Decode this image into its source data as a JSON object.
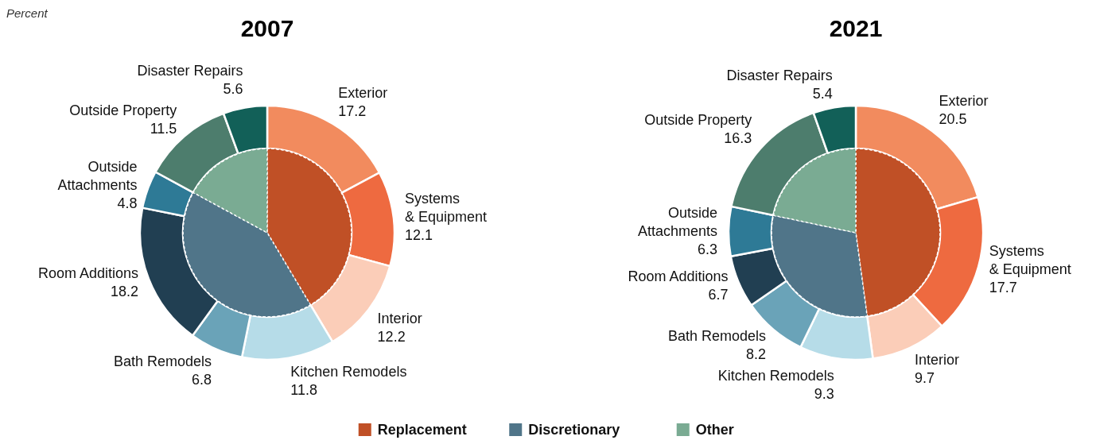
{
  "chart_data": [
    {
      "type": "donut",
      "title": "2007",
      "annotations": [
        "Percent"
      ],
      "data_labels": true,
      "categories": [
        "Exterior",
        "Systems\n& Equipment",
        "Interior",
        "Kitchen Remodels",
        "Bath Remodels",
        "Room Additions",
        "Outside\nAttachments",
        "Outside Property",
        "Disaster Repairs"
      ],
      "values": [
        17.2,
        12.1,
        12.2,
        11.8,
        6.8,
        18.2,
        4.8,
        11.5,
        5.6
      ],
      "colors": [
        "#f28b5e",
        "#ee6a40",
        "#fbcdb8",
        "#b6dce8",
        "#6aa3b8",
        "#213f52",
        "#2e7a96",
        "#4d7d6d",
        "#126058"
      ]
    },
    {
      "type": "pie",
      "legend": "bottom",
      "categories": [
        "Replacement",
        "Discretionary",
        "Other"
      ],
      "values": [
        41.5,
        41.6,
        17.1
      ],
      "colors": [
        "#c05026",
        "#507589",
        "#7aab93"
      ]
    },
    {
      "type": "donut",
      "title": "2021",
      "data_labels": true,
      "categories": [
        "Exterior",
        "Systems\n& Equipment",
        "Interior",
        "Kitchen Remodels",
        "Bath Remodels",
        "Room Additions",
        "Outside\nAttachments",
        "Outside Property",
        "Disaster Repairs"
      ],
      "values": [
        20.5,
        17.7,
        9.7,
        9.3,
        8.2,
        6.7,
        6.3,
        16.3,
        5.4
      ],
      "colors": [
        "#f28b5e",
        "#ee6a40",
        "#fbcdb8",
        "#b6dce8",
        "#6aa3b8",
        "#213f52",
        "#2e7a96",
        "#4d7d6d",
        "#126058"
      ]
    },
    {
      "type": "pie",
      "values": [
        47.9,
        30.5,
        21.7
      ],
      "colors": [
        "#c05026",
        "#507589",
        "#7aab93"
      ]
    }
  ]
}
